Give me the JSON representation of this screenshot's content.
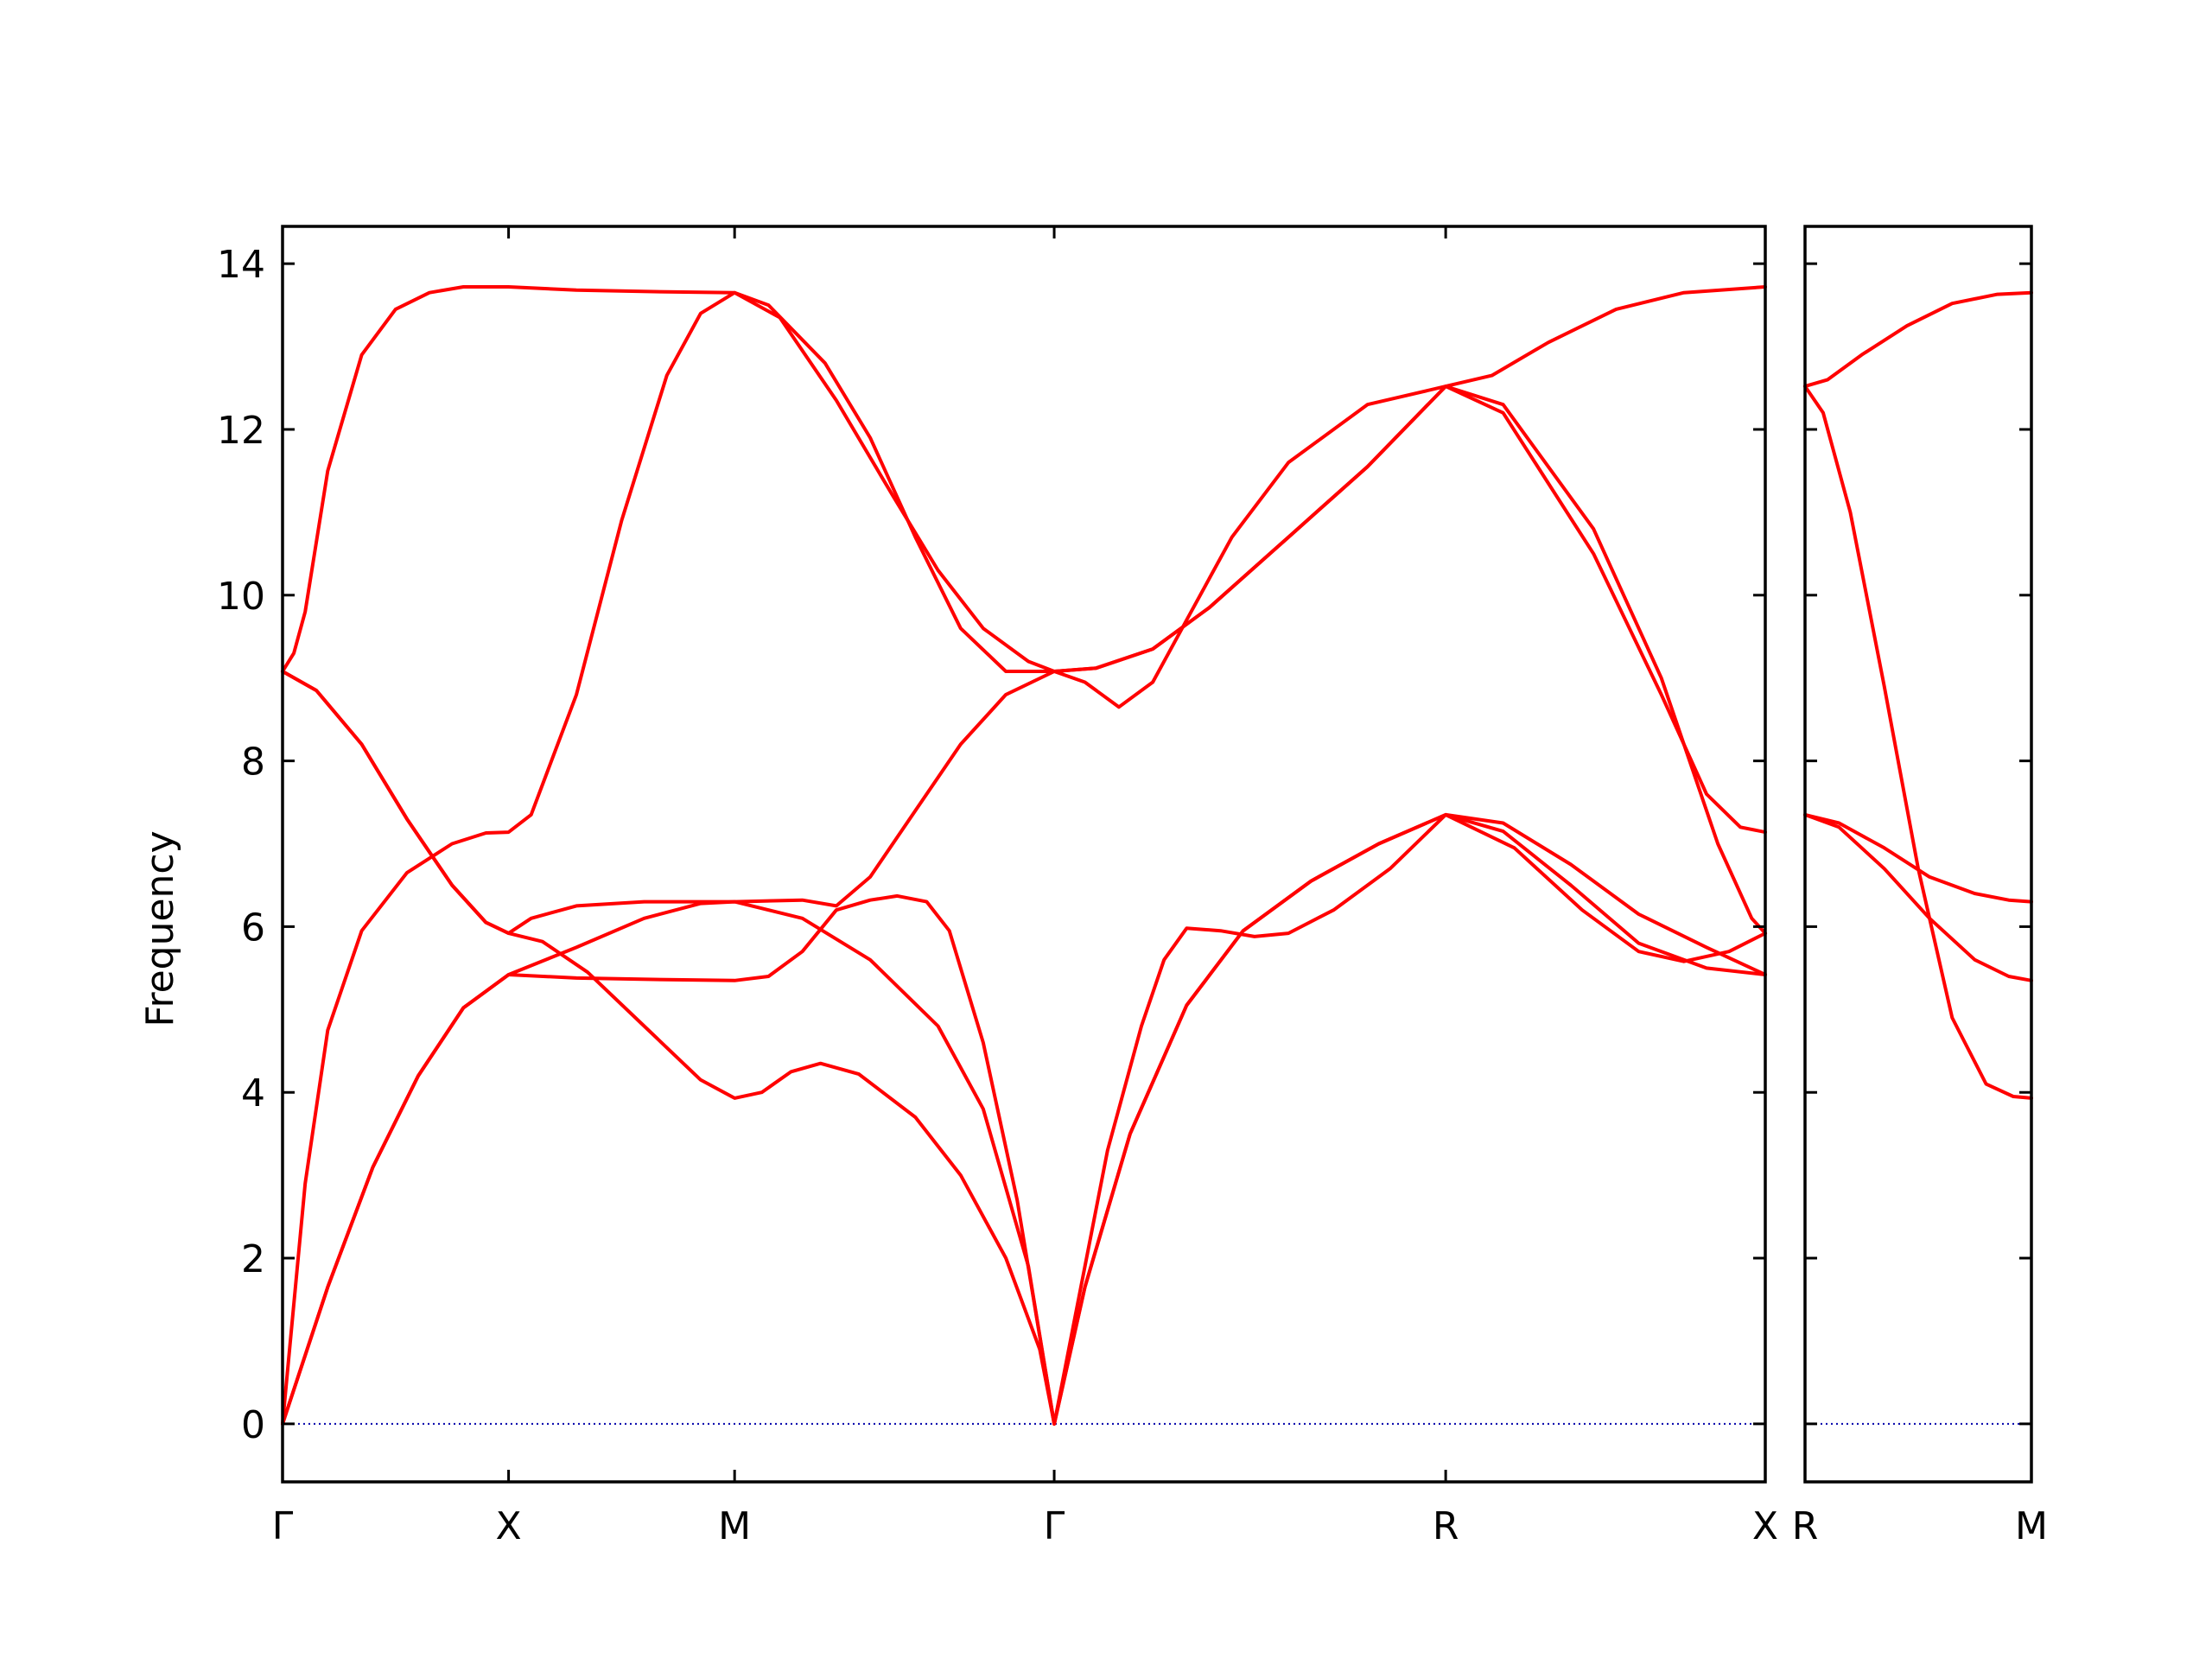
{
  "chart_data": {
    "type": "line",
    "ylabel": "Frequency",
    "ylim": [
      -0.7,
      14.45
    ],
    "yticks": [
      "0",
      "2",
      "4",
      "6",
      "8",
      "10",
      "12",
      "14"
    ],
    "grid": false,
    "legend": "none",
    "colors": {
      "bands": "#ff0000",
      "zero_line": "#0000aa",
      "axes": "#000000"
    },
    "panels": [
      {
        "name": "main",
        "x_labels": [
          "Γ",
          "X",
          "M",
          "Γ",
          "R",
          "X"
        ],
        "segment_lengths": [
          1.0,
          1.0,
          1.414,
          1.732,
          1.414
        ],
        "series": [
          {
            "values": [
              [
                0,
                9.08
              ],
              [
                0.05,
                9.3
              ],
              [
                0.1,
                9.8
              ],
              [
                0.2,
                11.5
              ],
              [
                0.35,
                12.9
              ],
              [
                0.5,
                13.45
              ],
              [
                0.65,
                13.65
              ],
              [
                0.8,
                13.72
              ],
              [
                1.0,
                13.72
              ],
              [
                1.3,
                13.68
              ],
              [
                1.7,
                13.66
              ],
              [
                2.0,
                13.65
              ],
              [
                2.2,
                13.35
              ],
              [
                2.45,
                12.35
              ],
              [
                2.7,
                11.2
              ],
              [
                2.9,
                10.3
              ],
              [
                3.1,
                9.6
              ],
              [
                3.3,
                9.2
              ],
              [
                3.414,
                9.08
              ],
              [
                3.6,
                9.12
              ],
              [
                3.85,
                9.35
              ],
              [
                4.1,
                9.85
              ],
              [
                4.45,
                10.7
              ],
              [
                4.8,
                11.55
              ],
              [
                5.146,
                12.52
              ],
              [
                5.35,
                12.65
              ],
              [
                5.6,
                13.05
              ],
              [
                5.9,
                13.45
              ],
              [
                6.2,
                13.65
              ],
              [
                6.56,
                13.72
              ]
            ]
          },
          {
            "values": [
              [
                0,
                9.08
              ],
              [
                0.15,
                8.85
              ],
              [
                0.35,
                8.2
              ],
              [
                0.55,
                7.3
              ],
              [
                0.75,
                6.5
              ],
              [
                0.9,
                6.05
              ],
              [
                1.0,
                5.92
              ],
              [
                1.15,
                5.82
              ],
              [
                1.35,
                5.45
              ],
              [
                1.6,
                4.8
              ],
              [
                1.85,
                4.15
              ],
              [
                2.0,
                3.93
              ],
              [
                2.12,
                4.0
              ],
              [
                2.25,
                4.25
              ],
              [
                2.38,
                4.35
              ],
              [
                2.55,
                4.22
              ],
              [
                2.8,
                3.7
              ],
              [
                3.0,
                3.0
              ],
              [
                3.2,
                2.0
              ],
              [
                3.35,
                0.9
              ],
              [
                3.414,
                0.0
              ],
              [
                3.5,
                1.2
              ],
              [
                3.65,
                3.3
              ],
              [
                3.8,
                4.8
              ],
              [
                3.9,
                5.6
              ],
              [
                4.0,
                5.98
              ],
              [
                4.15,
                5.95
              ],
              [
                4.3,
                5.88
              ],
              [
                4.45,
                5.92
              ],
              [
                4.65,
                6.2
              ],
              [
                4.9,
                6.7
              ],
              [
                5.146,
                7.35
              ],
              [
                5.4,
                7.15
              ],
              [
                5.7,
                6.5
              ],
              [
                6.0,
                5.8
              ],
              [
                6.3,
                5.5
              ],
              [
                6.56,
                5.42
              ]
            ]
          },
          {
            "values": [
              [
                0,
                0.0
              ],
              [
                0.1,
                2.9
              ],
              [
                0.2,
                4.75
              ],
              [
                0.35,
                5.95
              ],
              [
                0.55,
                6.65
              ],
              [
                0.75,
                7.0
              ],
              [
                0.9,
                7.13
              ],
              [
                1.0,
                7.14
              ],
              [
                1.1,
                7.35
              ],
              [
                1.3,
                8.8
              ],
              [
                1.5,
                10.9
              ],
              [
                1.7,
                12.65
              ],
              [
                1.85,
                13.4
              ],
              [
                2.0,
                13.65
              ],
              [
                2.15,
                13.5
              ],
              [
                2.4,
                12.8
              ],
              [
                2.6,
                11.9
              ],
              [
                2.8,
                10.7
              ],
              [
                3.0,
                9.6
              ],
              [
                3.2,
                9.08
              ],
              [
                3.414,
                9.08
              ],
              [
                3.55,
                8.95
              ],
              [
                3.7,
                8.65
              ],
              [
                3.85,
                8.95
              ],
              [
                4.0,
                9.7
              ],
              [
                4.2,
                10.7
              ],
              [
                4.45,
                11.6
              ],
              [
                4.8,
                12.3
              ],
              [
                5.146,
                12.52
              ],
              [
                5.4,
                12.2
              ],
              [
                5.8,
                10.5
              ],
              [
                6.1,
                8.8
              ],
              [
                6.3,
                7.6
              ],
              [
                6.45,
                7.2
              ],
              [
                6.56,
                7.14
              ]
            ]
          },
          {
            "values": [
              [
                0,
                0.0
              ],
              [
                0.2,
                1.65
              ],
              [
                0.4,
                3.1
              ],
              [
                0.6,
                4.2
              ],
              [
                0.8,
                5.02
              ],
              [
                1.0,
                5.42
              ],
              [
                1.3,
                5.38
              ],
              [
                1.7,
                5.36
              ],
              [
                2.0,
                5.35
              ],
              [
                2.15,
                5.4
              ],
              [
                2.3,
                5.7
              ],
              [
                2.45,
                6.2
              ],
              [
                2.6,
                6.32
              ],
              [
                2.72,
                6.37
              ],
              [
                2.85,
                6.3
              ],
              [
                2.95,
                5.95
              ],
              [
                3.1,
                4.6
              ],
              [
                3.25,
                2.7
              ],
              [
                3.414,
                0.0
              ],
              [
                3.55,
                1.65
              ],
              [
                3.75,
                3.5
              ],
              [
                4.0,
                5.05
              ],
              [
                4.25,
                5.95
              ],
              [
                4.55,
                6.55
              ],
              [
                4.85,
                7.0
              ],
              [
                5.146,
                7.35
              ],
              [
                5.45,
                6.95
              ],
              [
                5.75,
                6.2
              ],
              [
                6.0,
                5.7
              ],
              [
                6.2,
                5.58
              ],
              [
                6.4,
                5.7
              ],
              [
                6.56,
                5.92
              ]
            ]
          },
          {
            "values": [
              [
                0,
                0.0
              ],
              [
                0.2,
                1.65
              ],
              [
                0.4,
                3.1
              ],
              [
                0.6,
                4.2
              ],
              [
                0.8,
                5.02
              ],
              [
                1.0,
                5.42
              ],
              [
                1.3,
                5.75
              ],
              [
                1.6,
                6.1
              ],
              [
                1.85,
                6.28
              ],
              [
                2.0,
                6.3
              ],
              [
                2.3,
                6.1
              ],
              [
                2.6,
                5.6
              ],
              [
                2.9,
                4.8
              ],
              [
                3.1,
                3.8
              ],
              [
                3.3,
                1.9
              ],
              [
                3.414,
                0.0
              ],
              [
                3.55,
                1.65
              ],
              [
                3.75,
                3.5
              ],
              [
                4.0,
                5.05
              ],
              [
                4.25,
                5.95
              ],
              [
                4.55,
                6.55
              ],
              [
                4.85,
                7.0
              ],
              [
                5.146,
                7.35
              ],
              [
                5.4,
                7.25
              ],
              [
                5.7,
                6.75
              ],
              [
                6.0,
                6.15
              ],
              [
                6.3,
                5.75
              ],
              [
                6.56,
                5.42
              ]
            ]
          },
          {
            "values": [
              [
                0,
                9.08
              ],
              [
                0.15,
                8.85
              ],
              [
                0.35,
                8.2
              ],
              [
                0.55,
                7.3
              ],
              [
                0.75,
                6.5
              ],
              [
                0.9,
                6.05
              ],
              [
                1.0,
                5.92
              ],
              [
                1.1,
                6.1
              ],
              [
                1.3,
                6.25
              ],
              [
                1.6,
                6.3
              ],
              [
                2.0,
                6.3
              ],
              [
                2.3,
                6.32
              ],
              [
                2.45,
                6.25
              ],
              [
                2.6,
                6.6
              ],
              [
                2.8,
                7.4
              ],
              [
                3.0,
                8.2
              ],
              [
                3.2,
                8.8
              ],
              [
                3.414,
                9.08
              ],
              [
                3.6,
                9.12
              ],
              [
                3.85,
                9.35
              ],
              [
                4.1,
                9.85
              ],
              [
                4.45,
                10.7
              ],
              [
                4.8,
                11.55
              ],
              [
                5.146,
                12.52
              ],
              [
                5.4,
                12.3
              ],
              [
                5.8,
                10.8
              ],
              [
                6.1,
                9.0
              ],
              [
                6.35,
                7.0
              ],
              [
                6.5,
                6.1
              ],
              [
                6.56,
                5.92
              ]
            ]
          }
        ]
      },
      {
        "name": "side",
        "x_labels": [
          "R",
          "M"
        ],
        "segment_lengths": [
          1.0
        ],
        "series": [
          {
            "values": [
              [
                0,
                12.52
              ],
              [
                0.1,
                12.6
              ],
              [
                0.25,
                12.9
              ],
              [
                0.45,
                13.25
              ],
              [
                0.65,
                13.52
              ],
              [
                0.85,
                13.63
              ],
              [
                1.0,
                13.65
              ]
            ]
          },
          {
            "values": [
              [
                0,
                12.52
              ],
              [
                0.08,
                12.2
              ],
              [
                0.2,
                11.0
              ],
              [
                0.35,
                8.9
              ],
              [
                0.5,
                6.7
              ],
              [
                0.65,
                4.9
              ],
              [
                0.8,
                4.1
              ],
              [
                0.92,
                3.95
              ],
              [
                1.0,
                3.93
              ]
            ]
          },
          {
            "values": [
              [
                0,
                7.35
              ],
              [
                0.15,
                7.2
              ],
              [
                0.35,
                6.7
              ],
              [
                0.55,
                6.1
              ],
              [
                0.75,
                5.6
              ],
              [
                0.9,
                5.4
              ],
              [
                1.0,
                5.35
              ]
            ]
          },
          {
            "values": [
              [
                0,
                7.35
              ],
              [
                0.15,
                7.25
              ],
              [
                0.35,
                6.95
              ],
              [
                0.55,
                6.6
              ],
              [
                0.75,
                6.4
              ],
              [
                0.9,
                6.32
              ],
              [
                1.0,
                6.3
              ]
            ]
          }
        ]
      }
    ]
  }
}
